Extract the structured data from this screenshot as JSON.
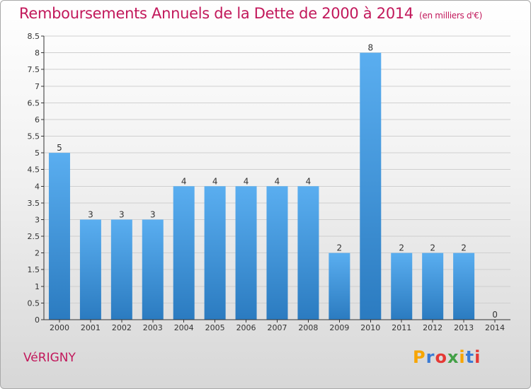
{
  "header": {
    "title": "Remboursements Annuels de la Dette de 2000 à 2014",
    "unit": "(en milliers d'€)"
  },
  "footer": {
    "town": "VéRIGNY",
    "logo": {
      "letters": [
        "P",
        "r",
        "o",
        "x",
        "i",
        "t",
        "i"
      ],
      "colors": [
        "#f7a500",
        "#3a7bd5",
        "#e53935",
        "#43a047",
        "#f7a500",
        "#3a7bd5",
        "#e53935"
      ]
    }
  },
  "chart_data": {
    "type": "bar",
    "title": "Remboursements Annuels de la Dette de 2000 à 2014",
    "categories": [
      "2000",
      "2001",
      "2002",
      "2003",
      "2004",
      "2005",
      "2006",
      "2007",
      "2008",
      "2009",
      "2010",
      "2011",
      "2012",
      "2013",
      "2014"
    ],
    "values": [
      5,
      3,
      3,
      3,
      4,
      4,
      4,
      4,
      4,
      2,
      8,
      2,
      2,
      2,
      0
    ],
    "data_labels": [
      "5",
      "3",
      "3",
      "3",
      "4",
      "4",
      "4",
      "4",
      "4",
      "2",
      "8",
      "2",
      "2",
      "2",
      "0"
    ],
    "yticks": [
      "0",
      "0.5",
      "1",
      "1.5",
      "2",
      "2.5",
      "3",
      "3.5",
      "4",
      "4.5",
      "5",
      "5.5",
      "6",
      "6.5",
      "7",
      "7.5",
      "8",
      "8.5"
    ],
    "ylim": [
      0,
      8.5
    ],
    "grid": true,
    "colors": {
      "bar_top": "#5aaef0",
      "bar_bottom": "#2b7bc0",
      "grid": "#cfcfcf",
      "axis": "#333333"
    }
  }
}
